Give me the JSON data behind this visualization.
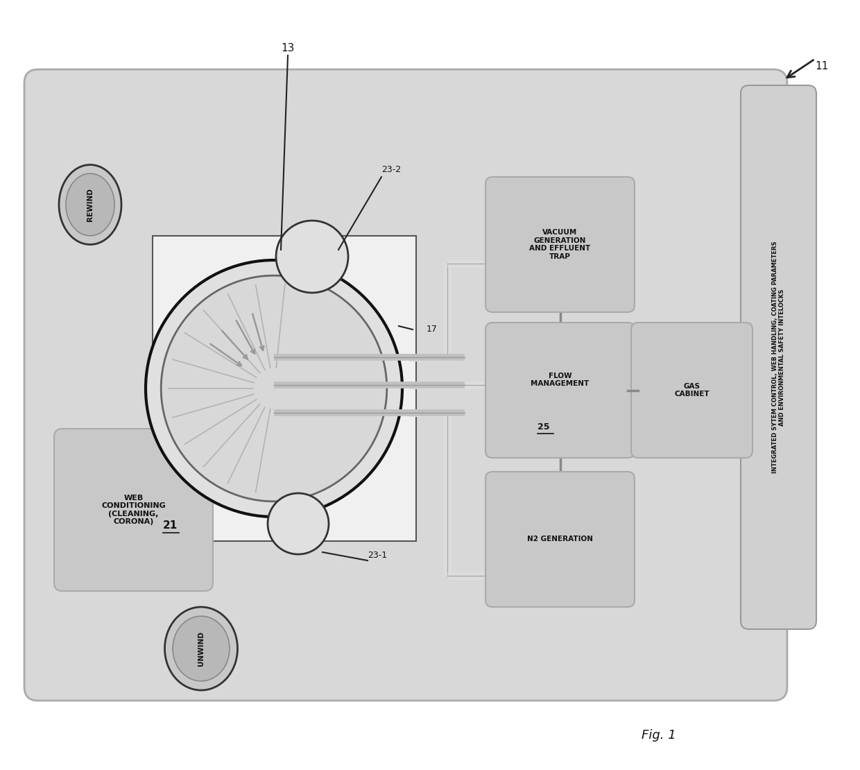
{
  "fig_bg": "#ffffff",
  "outer_box_bg": "#d8d8d8",
  "outer_box_edge": "#aaaaaa",
  "inner_bg": "#e8e8e8",
  "box_color": "#c8c8c8",
  "box_edge": "#aaaaaa",
  "white_box": "#f5f5f5",
  "dark_edge": "#333333",
  "connector_color": "#bbbbbb",
  "text_dark": "#111111",
  "text_mid": "#444444",
  "integrated_bg": "#d0d0d0",
  "integrated_edge": "#999999",
  "rewind_label": "REWIND",
  "unwind_label": "UNWIND",
  "web_label": "WEB\nCONDITIONING\n(CLEANING,\nCORONA)",
  "reactor_label": "21",
  "roller_top_label": "23-2",
  "roller_bot_label": "23-1",
  "label_17": "17",
  "vac_label": "VACUUM\nGENERATION\nAND EFFLUENT\nTRAP",
  "flow_label": "FLOW\nMANAGEMENT",
  "label_25": "25",
  "gas_label": "GAS\nCABINET",
  "n2_label": "N2 GENERATION",
  "integrated_label": "INTEGRATED SYTEM CONTROL, WEB HANDLING, COATING PARAMETERS\nAND ENVIRONMENTAL SAFETY INTELOCKS",
  "label_13": "13",
  "label_11": "11",
  "fig_label": "Fig. 1"
}
